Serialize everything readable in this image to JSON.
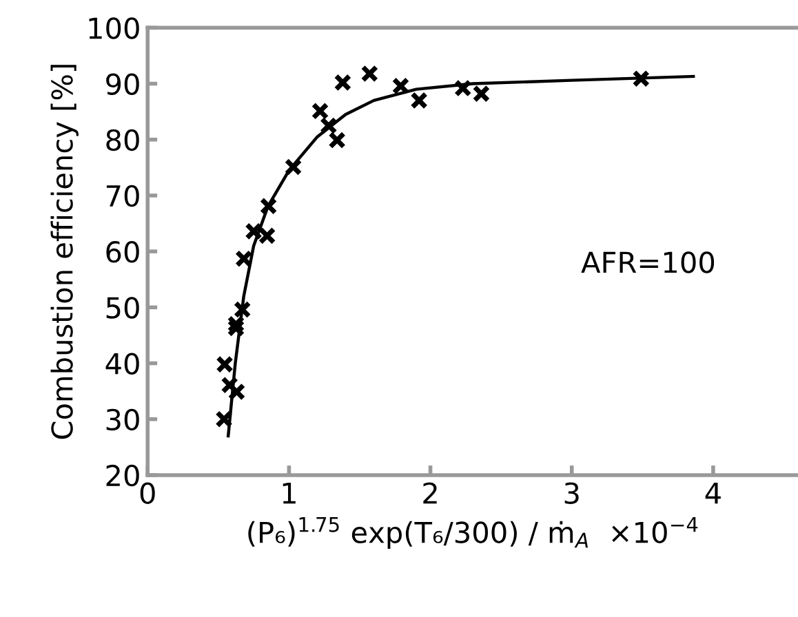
{
  "chart_data": {
    "type": "scatter",
    "xlabel": "(P₆)$^{1.75}$ exp(T₆/300) / ṁ$_{A}$  ×10$^{−4}$",
    "ylabel": "Combustion efficiency [%]",
    "annotations": [
      "AFR=100"
    ],
    "xlim": [
      0,
      4.6
    ],
    "xticks": [
      0,
      1,
      2,
      3,
      4
    ],
    "ylim": [
      20,
      100
    ],
    "yticks": [
      20,
      30,
      40,
      50,
      60,
      70,
      80,
      90,
      100
    ],
    "grid": false,
    "legend": false,
    "marker": "cross",
    "series": [
      {
        "color": "#000000",
        "x": [
          0.54,
          0.545,
          0.58,
          0.63,
          0.625,
          0.625,
          0.67,
          0.68,
          0.75,
          0.845,
          0.855,
          1.03,
          1.22,
          1.28,
          1.34,
          1.38,
          1.57,
          1.79,
          1.92,
          2.23,
          2.36,
          3.49
        ],
        "values": [
          30,
          39.8,
          36.1,
          34.9,
          46.3,
          47,
          49.6,
          58.7,
          63.6,
          62.8,
          68.1,
          75.1,
          85.1,
          82.5,
          79.9,
          90.2,
          91.8,
          89.6,
          87.0,
          89.2,
          88.2,
          90.9
        ]
      },
      {
        "type": "line",
        "color": "#000000",
        "marker": "none",
        "line_style": "solid",
        "x": [
          0.57,
          0.62,
          0.68,
          0.75,
          0.85,
          1.0,
          1.2,
          1.4,
          1.6,
          1.9,
          2.3,
          3.0,
          3.86
        ],
        "values": [
          27,
          40,
          52,
          61,
          68,
          74.5,
          80.5,
          84.5,
          87,
          89,
          90,
          90.6,
          91.3
        ]
      }
    ]
  }
}
